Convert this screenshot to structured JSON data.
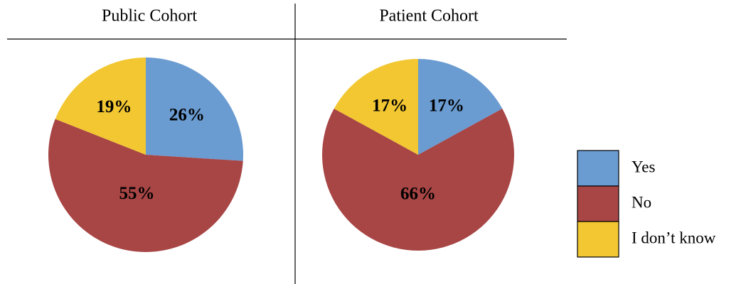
{
  "chart_data": [
    {
      "type": "pie",
      "title": "Public Cohort",
      "categories": [
        "Yes",
        "No",
        "I don’t know"
      ],
      "values": [
        26,
        55,
        19
      ],
      "value_labels": [
        "26%",
        "55%",
        "19%"
      ],
      "colors": [
        "#6a9bd1",
        "#a84545",
        "#f2c732"
      ]
    },
    {
      "type": "pie",
      "title": "Patient Cohort",
      "categories": [
        "Yes",
        "No",
        "I don’t know"
      ],
      "values": [
        17,
        66,
        17
      ],
      "value_labels": [
        "17%",
        "66%",
        "17%"
      ],
      "colors": [
        "#6a9bd1",
        "#a84545",
        "#f2c732"
      ]
    }
  ]
}
